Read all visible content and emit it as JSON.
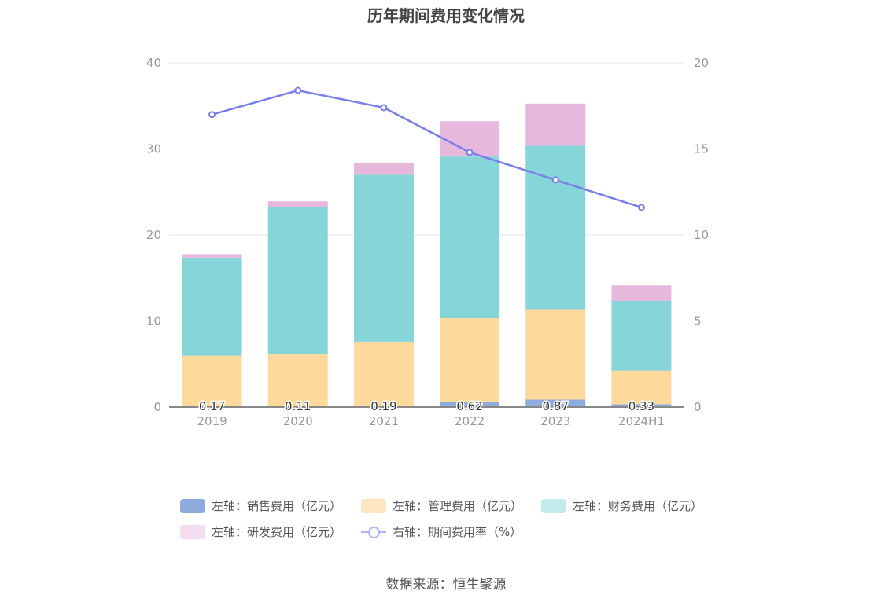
{
  "title": "历年期间费用变化情况",
  "source": "数据来源：恒生聚源",
  "colors": {
    "sales": "#8eacdb",
    "admin": "#fdd99b",
    "finance": "#86d5d8",
    "rd": "#e6b8db",
    "rate": "#7a7ee8",
    "grid": "#e3e6f0",
    "axis": "#888888",
    "tick_text": "#999999"
  },
  "legend": [
    {
      "label": "左轴：销售费用（亿元）",
      "icon": "bar-swatch",
      "color": "#8eacdb"
    },
    {
      "label": "左轴：管理费用（亿元）",
      "icon": "bar-swatch",
      "color": "#fde6c1"
    },
    {
      "label": "左轴：财务费用（亿元）",
      "icon": "bar-swatch",
      "color": "#c1eaeb"
    },
    {
      "label": "左轴：研发费用（亿元）",
      "icon": "bar-swatch",
      "color": "#f3dcee"
    },
    {
      "label": "右轴：期间费用率（%）",
      "icon": "line-circle",
      "color": "#b1b5f2"
    }
  ],
  "chart_data": {
    "type": "bar",
    "stacked": true,
    "categories": [
      "2019",
      "2020",
      "2021",
      "2022",
      "2023",
      "2024H1"
    ],
    "series": [
      {
        "name": "左轴：销售费用（亿元）",
        "axis": "left",
        "values": [
          0.17,
          0.11,
          0.19,
          0.62,
          0.87,
          0.33
        ],
        "labels": [
          "0.17",
          "0.11",
          "0.19",
          "0.62",
          "0.87",
          "0.33"
        ]
      },
      {
        "name": "左轴：管理费用（亿元）",
        "axis": "left",
        "values": [
          5.8,
          6.1,
          7.4,
          9.7,
          10.5,
          3.9
        ]
      },
      {
        "name": "左轴：财务费用（亿元）",
        "axis": "left",
        "values": [
          11.4,
          17.0,
          19.4,
          18.8,
          19.0,
          8.1
        ]
      },
      {
        "name": "左轴：研发费用（亿元）",
        "axis": "left",
        "values": [
          0.4,
          0.7,
          1.4,
          4.1,
          4.9,
          1.8
        ]
      },
      {
        "name": "右轴：期间费用率（%）",
        "axis": "right",
        "type": "line",
        "values": [
          17.0,
          18.4,
          17.4,
          14.8,
          13.2,
          11.6
        ]
      }
    ],
    "y_left": {
      "min": 0,
      "max": 40,
      "ticks": [
        "0",
        "10",
        "20",
        "30",
        "40"
      ]
    },
    "y_right": {
      "min": 0,
      "max": 20,
      "ticks": [
        "0",
        "5",
        "10",
        "15",
        "20"
      ]
    },
    "grid": true,
    "legend_position": "bottom"
  }
}
